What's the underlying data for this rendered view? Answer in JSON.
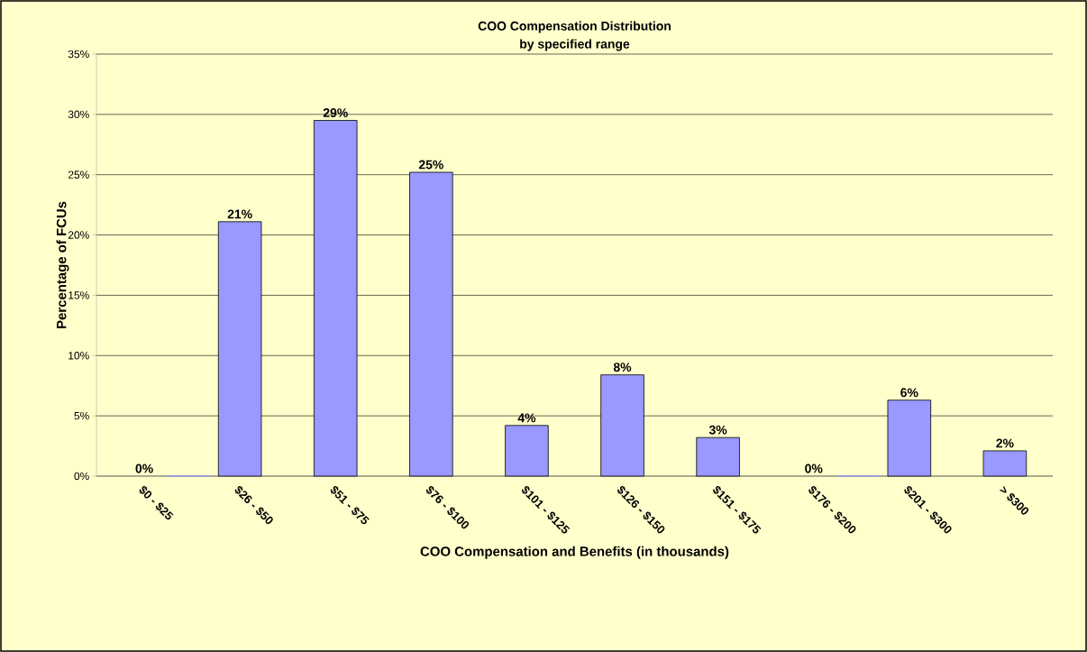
{
  "chart_data": {
    "type": "bar",
    "title": "COO Compensation Distribution",
    "subtitle": "by specified range",
    "xlabel": "COO Compensation and Benefits (in thousands)",
    "ylabel": "Percentage of FCUs",
    "categories": [
      "$0 - $25",
      "$26 - $50",
      "$51 - $75",
      "$76 - $100",
      "$101 - $125",
      "$126 - $150",
      "$151 - $175",
      "$176 - $200",
      "$201 - $300",
      "> $300"
    ],
    "values": [
      0,
      21.1,
      29.5,
      25.2,
      4.2,
      8.4,
      3.2,
      0,
      6.3,
      2.1
    ],
    "value_labels": [
      "0%",
      "21%",
      "29%",
      "25%",
      "4%",
      "8%",
      "3%",
      "0%",
      "6%",
      "2%"
    ],
    "color": "#9999ff",
    "ylim": [
      0,
      35
    ],
    "yticks": [
      {
        "value": 0,
        "label": "0%"
      },
      {
        "value": 5,
        "label": "5%"
      },
      {
        "value": 10,
        "label": "10%"
      },
      {
        "value": 15,
        "label": "15%"
      },
      {
        "value": 20,
        "label": "20%"
      },
      {
        "value": 25,
        "label": "25%"
      },
      {
        "value": 30,
        "label": "30%"
      },
      {
        "value": 35,
        "label": "35%"
      }
    ],
    "grid": "y"
  }
}
